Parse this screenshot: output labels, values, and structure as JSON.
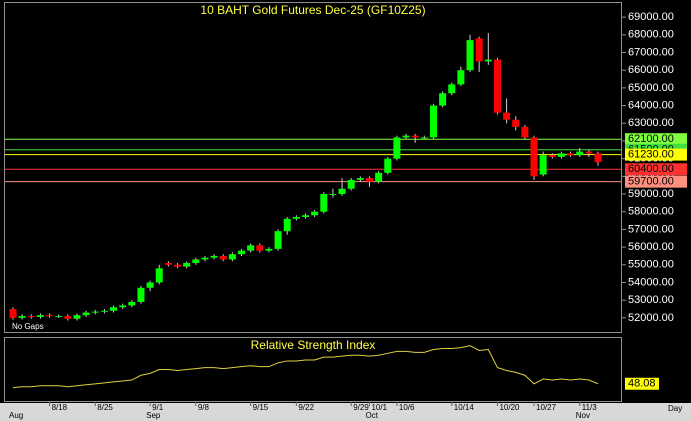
{
  "chart_data": {
    "type": "candlestick",
    "title": "10  BAHT  Gold  Futures  Dec-25  (GF10Z25)",
    "note": "No Gaps",
    "x_unit_label": "Day",
    "up_color": "#00ff00",
    "down_color": "#ff0000",
    "ylim": [
      51200,
      69800
    ],
    "yticks": [
      {
        "value": 52000,
        "label": "52000.00"
      },
      {
        "value": 53000,
        "label": "53000.00"
      },
      {
        "value": 54000,
        "label": "54000.00"
      },
      {
        "value": 55000,
        "label": "55000.00"
      },
      {
        "value": 56000,
        "label": "56000.00"
      },
      {
        "value": 57000,
        "label": "57000.00"
      },
      {
        "value": 58000,
        "label": "58000.00"
      },
      {
        "value": 59000,
        "label": "59000.00"
      },
      {
        "value": 60000,
        "label": "60000.00"
      },
      {
        "value": 61000,
        "label": "61000.00"
      },
      {
        "value": 62000,
        "label": "62000.00"
      },
      {
        "value": 63000,
        "label": "63000.00"
      },
      {
        "value": 64000,
        "label": "64000.00"
      },
      {
        "value": 65000,
        "label": "65000.00"
      },
      {
        "value": 66000,
        "label": "66000.00"
      },
      {
        "value": 67000,
        "label": "67000.00"
      },
      {
        "value": 68000,
        "label": "68000.00"
      },
      {
        "value": 69000,
        "label": "69000.00"
      }
    ],
    "levels": [
      {
        "value": 62100,
        "label": "62100.00",
        "color": "#80ff40"
      },
      {
        "value": 61500,
        "label": "61500.00",
        "color": "#40e040"
      },
      {
        "value": 61230,
        "label": "61230.00",
        "color": "#ffff00"
      },
      {
        "value": 60400,
        "label": "60400.00",
        "color": "#ff3030"
      },
      {
        "value": 59700,
        "label": "59700.00",
        "color": "#ff9080"
      }
    ],
    "categories": [
      null,
      null,
      null,
      null,
      "8/18",
      null,
      null,
      null,
      null,
      "8/25",
      null,
      null,
      null,
      null,
      null,
      "9/1",
      null,
      null,
      null,
      null,
      "9/8",
      null,
      null,
      null,
      null,
      null,
      "9/15",
      null,
      null,
      null,
      null,
      "9/22",
      null,
      null,
      null,
      null,
      null,
      "9/29",
      null,
      "10/1",
      null,
      null,
      "10/6",
      null,
      null,
      null,
      null,
      null,
      "10/14",
      null,
      null,
      null,
      null,
      "10/20",
      null,
      null,
      null,
      "10/27",
      null,
      null,
      null,
      null,
      "11/3",
      null,
      null
    ],
    "month_categories": [
      "Aug",
      null,
      null,
      null,
      null,
      null,
      null,
      null,
      null,
      null,
      null,
      null,
      null,
      null,
      null,
      "Sep",
      null,
      null,
      null,
      null,
      null,
      null,
      null,
      null,
      null,
      null,
      null,
      null,
      null,
      null,
      null,
      null,
      null,
      null,
      null,
      null,
      null,
      null,
      null,
      "Oct",
      null,
      null,
      null,
      null,
      null,
      null,
      null,
      null,
      null,
      null,
      null,
      null,
      null,
      null,
      null,
      null,
      null,
      null,
      null,
      null,
      null,
      null,
      "Nov",
      null,
      null
    ],
    "open": [
      52500,
      52000,
      52100,
      52050,
      52150,
      52100,
      52100,
      51950,
      52150,
      52300,
      52350,
      52400,
      52600,
      52700,
      52900,
      53700,
      54000,
      55100,
      55000,
      54900,
      55100,
      55300,
      55400,
      55500,
      55300,
      55600,
      55800,
      56100,
      55800,
      55900,
      56900,
      57600,
      57700,
      57800,
      58000,
      59000,
      59000,
      59300,
      59800,
      59900,
      59700,
      60200,
      61000,
      62200,
      62300,
      62200,
      62200,
      64000,
      64700,
      65200,
      66000,
      67800,
      66500,
      66600,
      63600,
      63200,
      62800,
      62200,
      60100,
      61200,
      61100,
      61300,
      61200,
      61400,
      61300
    ],
    "high": [
      52600,
      52200,
      52200,
      52250,
      52250,
      52200,
      52200,
      52250,
      52400,
      52450,
      52500,
      52700,
      52800,
      53000,
      53800,
      54100,
      55000,
      55200,
      55100,
      55200,
      55400,
      55500,
      55600,
      55600,
      55700,
      55900,
      56200,
      56200,
      56000,
      57000,
      57700,
      57800,
      57900,
      58100,
      59100,
      59300,
      59900,
      59900,
      60000,
      60000,
      60300,
      61100,
      62300,
      62400,
      62400,
      62300,
      64100,
      64800,
      65300,
      66200,
      68000,
      67900,
      68100,
      66700,
      64400,
      63400,
      62900,
      62300,
      61400,
      61300,
      61400,
      61400,
      61600,
      61500,
      61400
    ],
    "low": [
      51900,
      51900,
      51950,
      51950,
      52000,
      52000,
      51850,
      51850,
      52050,
      52200,
      52250,
      52300,
      52500,
      52600,
      52800,
      53500,
      53900,
      54900,
      54800,
      54800,
      55000,
      55200,
      55300,
      55200,
      55200,
      55500,
      55700,
      55700,
      55700,
      55800,
      56700,
      57500,
      57600,
      57700,
      57900,
      58800,
      58900,
      59200,
      59700,
      59400,
      59600,
      60100,
      60900,
      62100,
      61900,
      62100,
      62100,
      63900,
      64600,
      65100,
      65900,
      65900,
      66300,
      63500,
      63000,
      62600,
      62100,
      59800,
      60000,
      61000,
      61000,
      61100,
      61100,
      61100,
      60600
    ],
    "close": [
      52000,
      52100,
      52050,
      52150,
      52100,
      52100,
      51950,
      52150,
      52300,
      52350,
      52400,
      52600,
      52700,
      52900,
      53700,
      54000,
      54800,
      55000,
      54900,
      55100,
      55300,
      55400,
      55500,
      55300,
      55600,
      55800,
      56100,
      55800,
      55900,
      56900,
      57600,
      57700,
      57800,
      58000,
      59000,
      59000,
      59300,
      59800,
      59900,
      59700,
      60200,
      61000,
      62200,
      62300,
      62200,
      62200,
      64000,
      64700,
      65200,
      66000,
      67700,
      66500,
      66600,
      63600,
      63200,
      62800,
      62200,
      60000,
      61200,
      61100,
      61300,
      61200,
      61400,
      61300,
      60800
    ],
    "rsi": {
      "title": "Relative Strength Index",
      "color": "#e0d040",
      "ylim": [
        30,
        95
      ],
      "values": [
        44,
        45,
        45,
        46,
        46,
        46,
        45,
        46,
        47,
        48,
        49,
        50,
        51,
        52,
        57,
        59,
        63,
        63,
        62,
        63,
        64,
        65,
        65,
        64,
        65,
        66,
        67,
        66,
        66,
        70,
        72,
        72,
        73,
        73,
        76,
        76,
        77,
        78,
        78,
        77,
        78,
        80,
        82,
        82,
        81,
        81,
        84,
        85,
        85,
        86,
        88,
        83,
        84,
        65,
        62,
        60,
        57,
        48,
        53,
        52,
        53,
        52,
        53,
        52,
        48.08
      ],
      "last_label": "48.08"
    }
  }
}
